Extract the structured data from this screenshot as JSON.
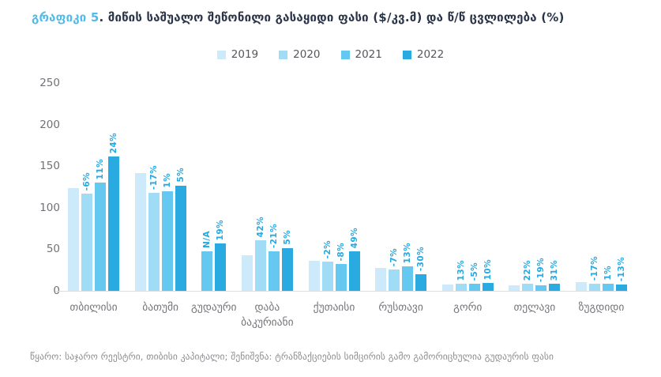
{
  "title": {
    "prefix": "გრაფიკი 5",
    "rest": ". მიწის საშუალო შეწონილი გასაყიდი ფასი ($/კვ.მ) და წ/წ ცვლილება (%)"
  },
  "footer": "წყარო: საჯარო რეესტრი, თიბისი კაპიტალი; შენიშვნა: ტრანზაქციების სიმცირის გამო გამორიცხულია გუდაურის ფასი",
  "chart_data": {
    "type": "bar",
    "title": "გრაფიკი 5. მიწის საშუალო შეწონილი გასაყიდი ფასი ($/კვ.მ) და წ/წ ცვლილება (%)",
    "ylabel": "",
    "xlabel": "",
    "ylim": [
      0,
      250
    ],
    "yticks": [
      0,
      50,
      100,
      150,
      200,
      250
    ],
    "grid": false,
    "legend_position": "top",
    "series_years": [
      "2019",
      "2020",
      "2021",
      "2022"
    ],
    "colors": {
      "2019": "#cdeafa",
      "2020": "#a0dcf6",
      "2021": "#64c8f0",
      "2022": "#29abe2"
    },
    "label_color": "#24a9e1",
    "groups": [
      {
        "category": "თბილისი",
        "bars": [
          {
            "year": "2019",
            "value": 124,
            "label": null
          },
          {
            "year": "2020",
            "value": 117,
            "label": "-6%"
          },
          {
            "year": "2021",
            "value": 130,
            "label": "11%"
          },
          {
            "year": "2022",
            "value": 162,
            "label": "24%"
          }
        ]
      },
      {
        "category": "ბათუმი",
        "bars": [
          {
            "year": "2019",
            "value": 142,
            "label": null
          },
          {
            "year": "2020",
            "value": 118,
            "label": "-17%"
          },
          {
            "year": "2021",
            "value": 120,
            "label": "1%"
          },
          {
            "year": "2022",
            "value": 126,
            "label": "5%"
          }
        ]
      },
      {
        "category": "გუდაური",
        "bars": [
          {
            "year": "2021",
            "value": 48,
            "label": "N/A"
          },
          {
            "year": "2022",
            "value": 57,
            "label": "19%"
          }
        ]
      },
      {
        "category": "დაბა ბაკურიანი",
        "bars": [
          {
            "year": "2019",
            "value": 43,
            "label": null
          },
          {
            "year": "2020",
            "value": 61,
            "label": "42%"
          },
          {
            "year": "2021",
            "value": 48,
            "label": "-21%"
          },
          {
            "year": "2022",
            "value": 51,
            "label": "5%"
          }
        ]
      },
      {
        "category": "ქუთაისი",
        "bars": [
          {
            "year": "2019",
            "value": 36,
            "label": null
          },
          {
            "year": "2020",
            "value": 35,
            "label": "-2%"
          },
          {
            "year": "2021",
            "value": 32,
            "label": "-8%"
          },
          {
            "year": "2022",
            "value": 48,
            "label": "49%"
          }
        ]
      },
      {
        "category": "რუსთავი",
        "bars": [
          {
            "year": "2019",
            "value": 28,
            "label": null
          },
          {
            "year": "2020",
            "value": 26,
            "label": "-7%"
          },
          {
            "year": "2021",
            "value": 29,
            "label": "13%"
          },
          {
            "year": "2022",
            "value": 20,
            "label": "-30%"
          }
        ]
      },
      {
        "category": "გორი",
        "bars": [
          {
            "year": "2019",
            "value": 8,
            "label": null
          },
          {
            "year": "2020",
            "value": 9,
            "label": "13%"
          },
          {
            "year": "2021",
            "value": 8.6,
            "label": "-5%"
          },
          {
            "year": "2022",
            "value": 9.5,
            "label": "10%"
          }
        ]
      },
      {
        "category": "თელავი",
        "bars": [
          {
            "year": "2019",
            "value": 7,
            "label": null
          },
          {
            "year": "2020",
            "value": 8.5,
            "label": "22%"
          },
          {
            "year": "2021",
            "value": 7,
            "label": "-19%"
          },
          {
            "year": "2022",
            "value": 9,
            "label": "31%"
          }
        ]
      },
      {
        "category": "ზუგდიდი",
        "bars": [
          {
            "year": "2019",
            "value": 10.5,
            "label": null
          },
          {
            "year": "2020",
            "value": 8.7,
            "label": "-17%"
          },
          {
            "year": "2021",
            "value": 8.8,
            "label": "1%"
          },
          {
            "year": "2022",
            "value": 7.6,
            "label": "-13%"
          }
        ]
      }
    ]
  }
}
